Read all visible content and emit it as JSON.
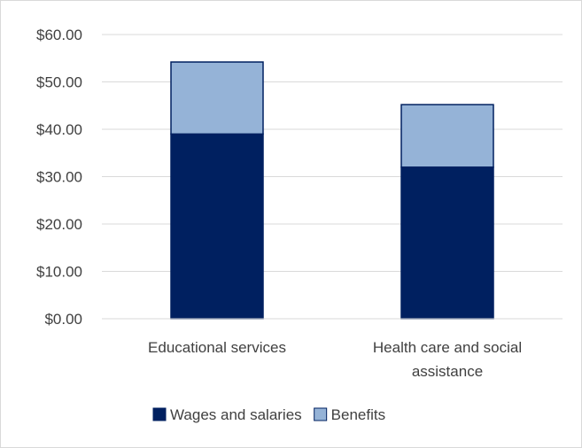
{
  "chart_data": {
    "type": "bar",
    "stacked": true,
    "categories": [
      [
        "Educational services"
      ],
      [
        "Health care and social",
        "assistance"
      ]
    ],
    "series": [
      {
        "name": "Wages and salaries",
        "values": [
          39.0,
          32.0
        ],
        "color": "#002060"
      },
      {
        "name": "Benefits",
        "values": [
          15.2,
          13.2
        ],
        "color": "#95B3D7"
      }
    ],
    "ylim": [
      0,
      60
    ],
    "yticks": [
      "$0.00",
      "$10.00",
      "$20.00",
      "$30.00",
      "$40.00",
      "$50.00",
      "$60.00"
    ],
    "ytick_values": [
      0,
      10,
      20,
      30,
      40,
      50,
      60
    ],
    "grid": true,
    "legend_position": "bottom",
    "title": "",
    "xlabel": "",
    "ylabel": ""
  }
}
